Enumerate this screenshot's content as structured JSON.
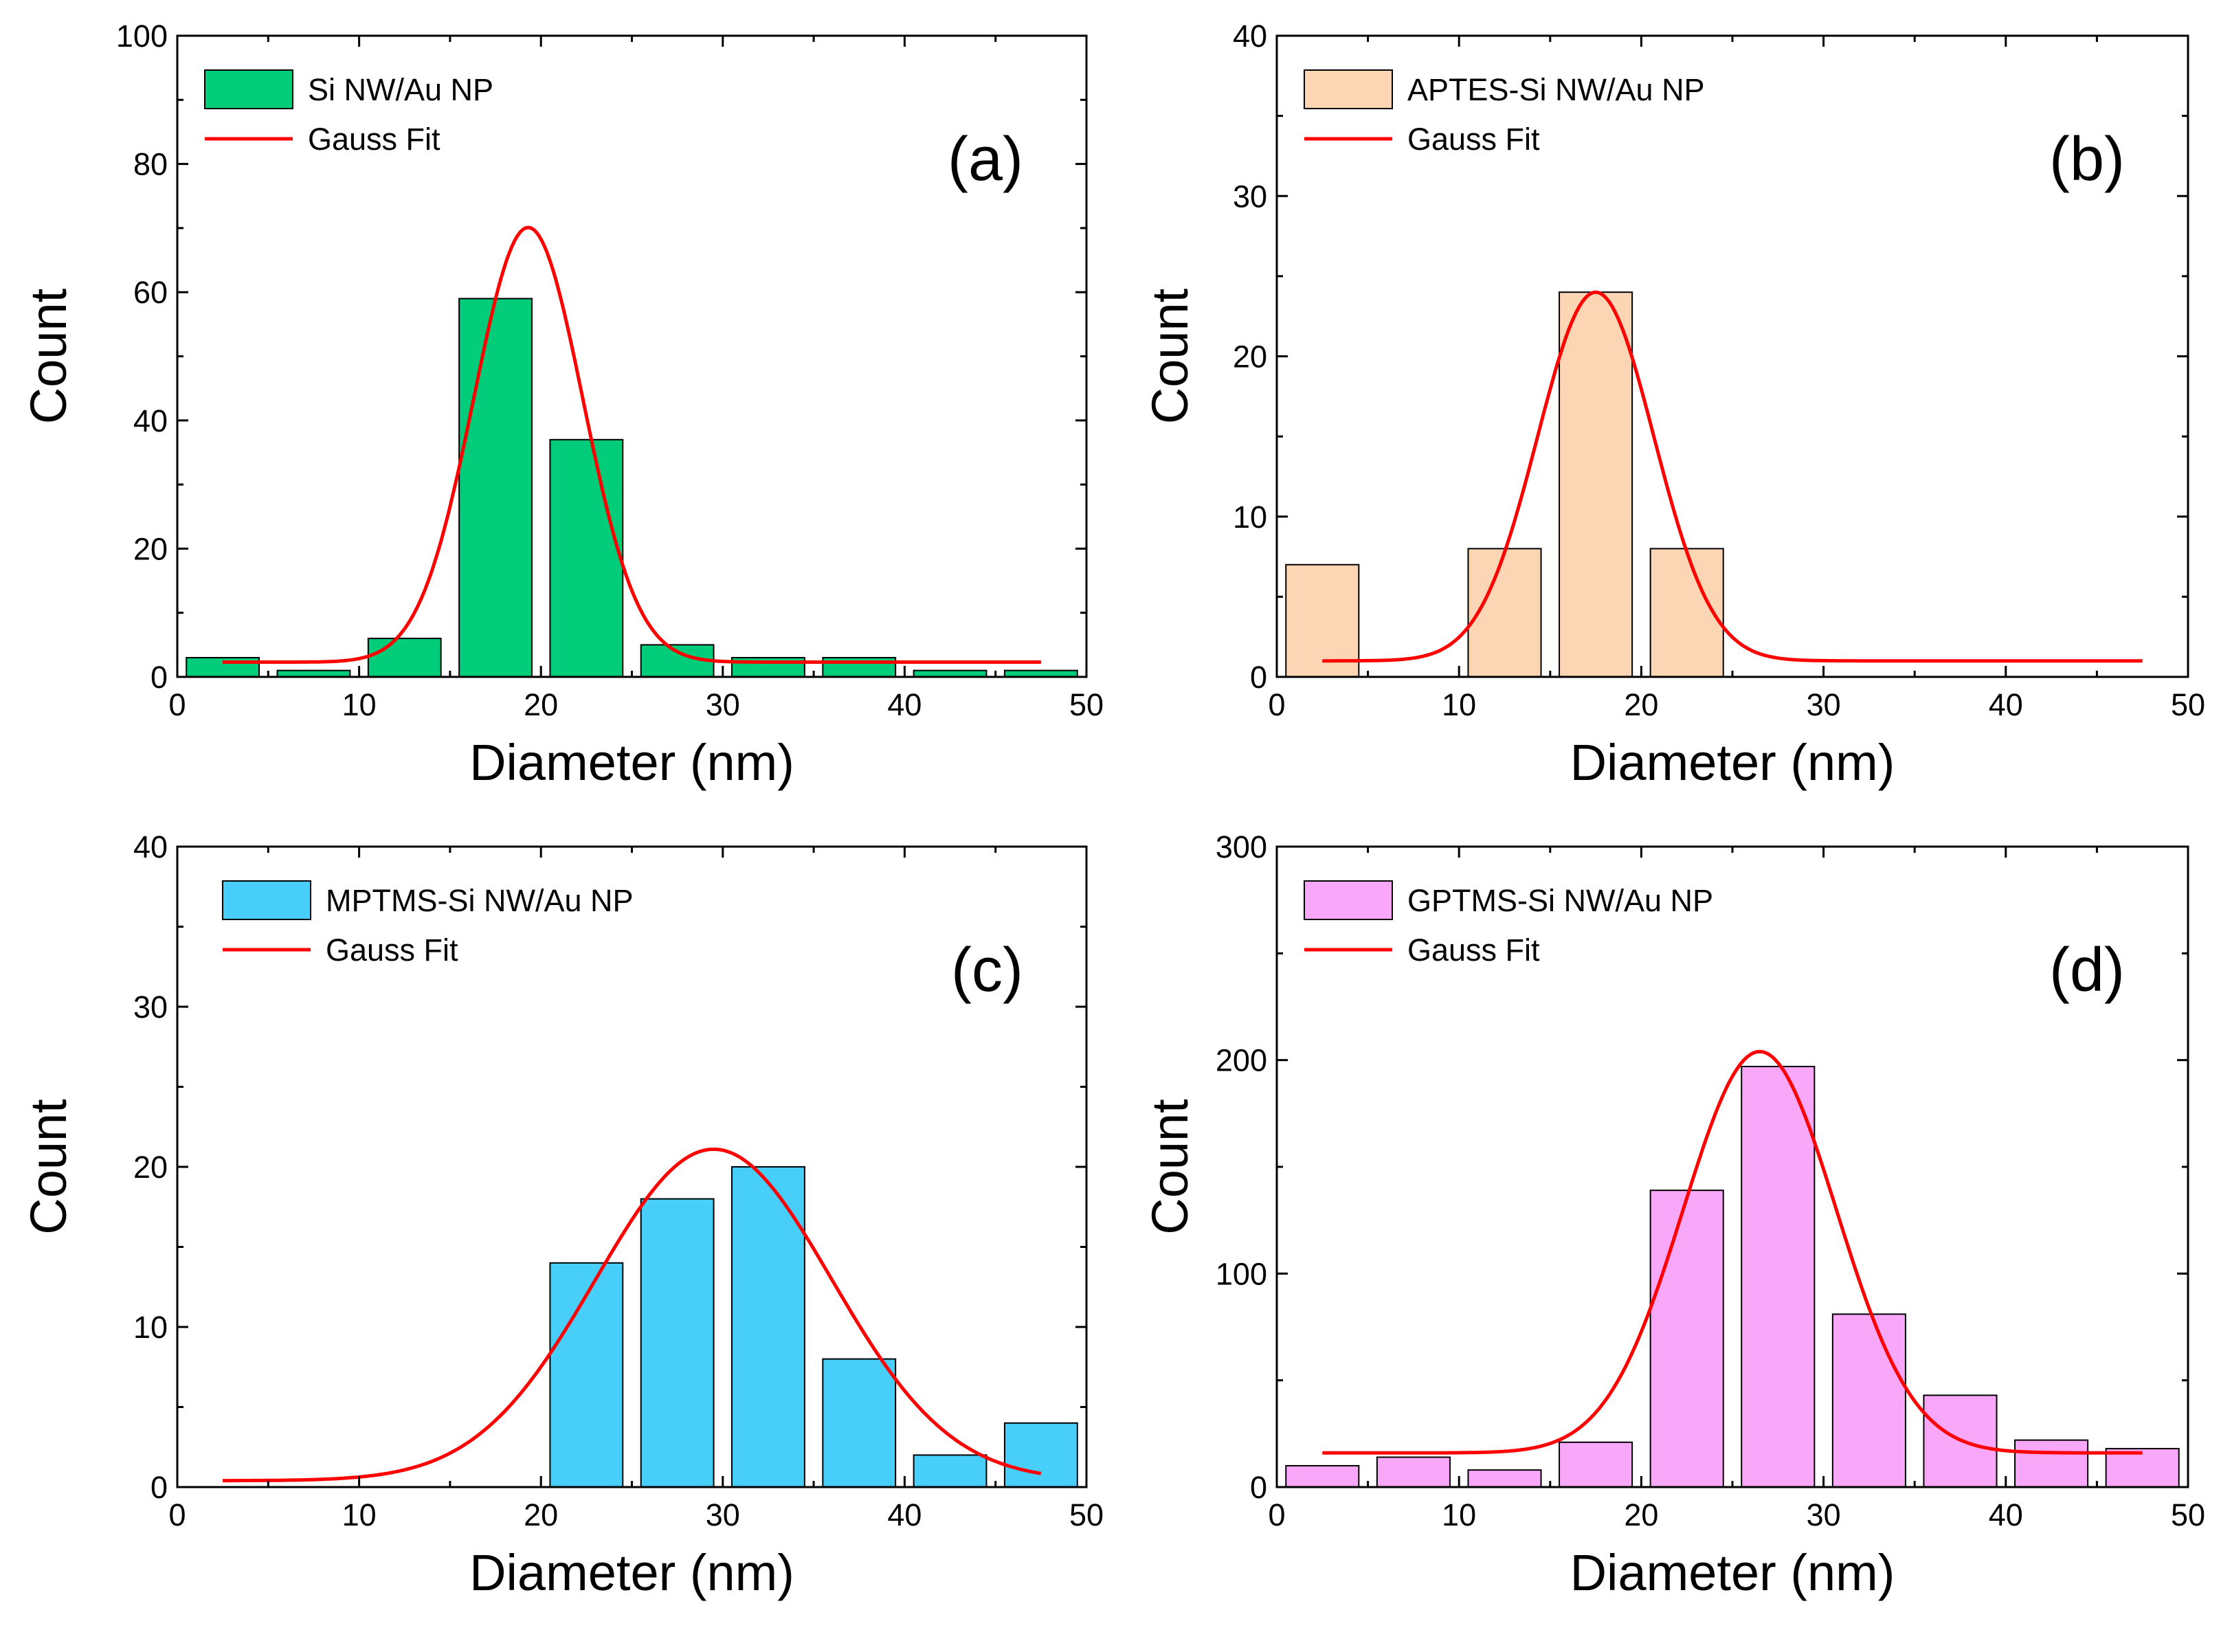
{
  "colors": {
    "fit": "#ff0000"
  },
  "chart_data": [
    {
      "type": "bar",
      "panel_label": "(a)",
      "title": "",
      "xlabel": "Diameter (nm)",
      "ylabel": "Count",
      "xlim": [
        0,
        50
      ],
      "ylim": [
        0,
        100
      ],
      "xticks": [
        0,
        10,
        20,
        30,
        40,
        50
      ],
      "yticks": [
        0,
        20,
        40,
        60,
        80,
        100
      ],
      "bar_color": "#00cc7a",
      "bin_width": 4,
      "categories": [
        2.5,
        7.5,
        12.5,
        17.5,
        22.5,
        27.5,
        32.5,
        37.5,
        42.5,
        47.5
      ],
      "values": [
        3,
        1,
        6,
        59,
        37,
        5,
        3,
        3,
        1,
        1
      ],
      "legend": {
        "position": "top-left",
        "bar_label": "Si NW/Au NP",
        "fit_label": "Gauss Fit"
      },
      "fit": {
        "name": "Gauss Fit",
        "y0": 2.3,
        "center": 19.3,
        "amplitude": 67.8,
        "sigma": 3.0,
        "x_range": [
          2.5,
          47.5
        ]
      }
    },
    {
      "type": "bar",
      "panel_label": "(b)",
      "title": "",
      "xlabel": "Diameter (nm)",
      "ylabel": "Count",
      "xlim": [
        0,
        50
      ],
      "ylim": [
        0,
        40
      ],
      "xticks": [
        0,
        10,
        20,
        30,
        40,
        50
      ],
      "yticks": [
        0,
        10,
        20,
        30,
        40
      ],
      "bar_color": "#fcd5b5",
      "bin_width": 4,
      "categories": [
        2.5,
        12.5,
        17.5,
        22.5
      ],
      "values": [
        7,
        8,
        24,
        8
      ],
      "legend": {
        "position": "top-left",
        "bar_label": "APTES-Si NW/Au NP",
        "fit_label": "Gauss Fit"
      },
      "fit": {
        "name": "Gauss Fit",
        "y0": 1.0,
        "center": 17.5,
        "amplitude": 23.0,
        "sigma": 3.2,
        "x_range": [
          2.5,
          47.5
        ]
      }
    },
    {
      "type": "bar",
      "panel_label": "(c)",
      "title": "",
      "xlabel": "Diameter (nm)",
      "ylabel": "Count",
      "xlim": [
        0,
        50
      ],
      "ylim": [
        0,
        40
      ],
      "xticks": [
        0,
        10,
        20,
        30,
        40,
        50
      ],
      "yticks": [
        0,
        10,
        20,
        30,
        40
      ],
      "bar_color": "#47cff9",
      "bin_width": 4,
      "categories": [
        22.5,
        27.5,
        32.5,
        37.5,
        42.5,
        47.5
      ],
      "values": [
        14,
        18,
        20,
        8,
        2,
        4
      ],
      "legend": {
        "position": "top-left",
        "bar_label": "MPTMS-Si NW/Au NP",
        "fit_label": "Gauss Fit"
      },
      "fit": {
        "name": "Gauss Fit",
        "y0": 0.4,
        "center": 29.5,
        "amplitude": 20.7,
        "sigma": 6.5,
        "x_range": [
          2.5,
          47.5
        ]
      }
    },
    {
      "type": "bar",
      "panel_label": "(d)",
      "title": "",
      "xlabel": "Diameter (nm)",
      "ylabel": "Count",
      "xlim": [
        0,
        50
      ],
      "ylim": [
        0,
        300
      ],
      "xticks": [
        0,
        10,
        20,
        30,
        40,
        50
      ],
      "yticks": [
        0,
        100,
        200,
        300
      ],
      "bar_color": "#f9a7f9",
      "bin_width": 4,
      "categories": [
        2.5,
        7.5,
        12.5,
        17.5,
        22.5,
        27.5,
        32.5,
        37.5,
        42.5,
        47.5
      ],
      "values": [
        10,
        14,
        8,
        21,
        139,
        197,
        81,
        43,
        22,
        18
      ],
      "legend": {
        "position": "top-left",
        "bar_label": "GPTMS-Si NW/Au NP",
        "fit_label": "Gauss Fit"
      },
      "fit": {
        "name": "Gauss Fit",
        "y0": 16.0,
        "center": 26.5,
        "amplitude": 188.0,
        "sigma": 4.2,
        "x_range": [
          2.5,
          47.5
        ]
      }
    }
  ]
}
